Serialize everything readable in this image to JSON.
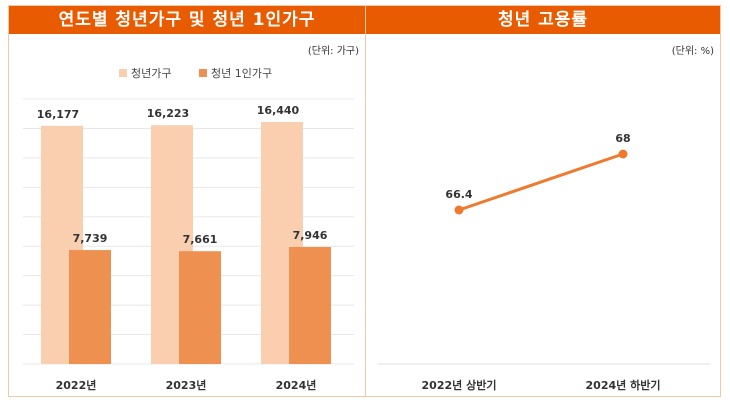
{
  "chart_data": [
    {
      "type": "bar",
      "title": "연도별 청년가구 및 청년 1인가구",
      "unit": "(단위: 가구)",
      "categories": [
        "2022년",
        "2023년",
        "2024년"
      ],
      "series": [
        {
          "name": "청년가구",
          "values": [
            16177,
            16223,
            16440
          ],
          "labels": [
            "16,177",
            "16,223",
            "16,440"
          ],
          "color": "#f9cfb0"
        },
        {
          "name": "청년 1인가구",
          "values": [
            7739,
            7661,
            7946
          ],
          "labels": [
            "7,739",
            "7,661",
            "7,946"
          ],
          "color": "#ee9150"
        }
      ],
      "ylim": [
        0,
        18000
      ],
      "grid": true,
      "legend": "top"
    },
    {
      "type": "line",
      "title": "청년 고용률",
      "unit": "(단위: %)",
      "categories": [
        "2022년 상반기",
        "2024년 하반기"
      ],
      "series": [
        {
          "values": [
            66.4,
            68
          ],
          "labels": [
            "66.4",
            "68"
          ],
          "color": "#ee7a2e"
        }
      ],
      "ylim": [
        62,
        70
      ],
      "grid": false
    }
  ]
}
